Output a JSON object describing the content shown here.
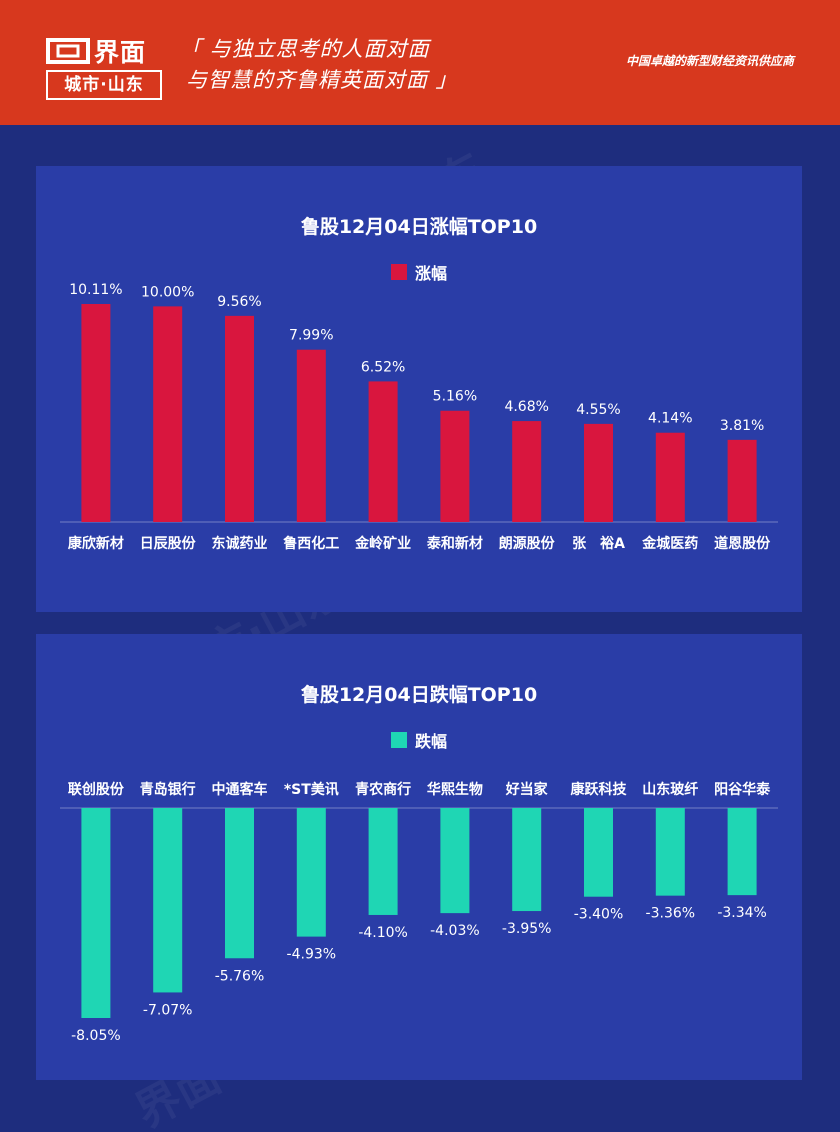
{
  "header": {
    "logo_name": "界面",
    "logo_sub": "城市·山东",
    "slogan_line1": "「 与独立思考的人面对面",
    "slogan_line2": "与智慧的齐鲁精英面对面 」",
    "tagline": "中国卓越的新型财经资讯供应商",
    "bg_color": "#d7381e"
  },
  "watermark_text": "界面 城市·山东",
  "chart_data": [
    {
      "type": "bar",
      "title": "鲁股12月04日涨幅TOP10",
      "legend": "涨幅",
      "color": "#d9163e",
      "categories": [
        "康欣新材",
        "日辰股份",
        "东诚药业",
        "鲁西化工",
        "金岭矿业",
        "泰和新材",
        "朗源股份",
        "张　裕A",
        "金城医药",
        "道恩股份"
      ],
      "values": [
        10.11,
        10.0,
        9.56,
        7.99,
        6.52,
        5.16,
        4.68,
        4.55,
        4.14,
        3.81
      ],
      "value_labels": [
        "10.11%",
        "10.00%",
        "9.56%",
        "7.99%",
        "6.52%",
        "5.16%",
        "4.68%",
        "4.55%",
        "4.14%",
        "3.81%"
      ],
      "ylim": [
        0,
        10.11
      ],
      "grid": false
    },
    {
      "type": "bar",
      "title": "鲁股12月04日跌幅TOP10",
      "legend": "跌幅",
      "color": "#1fd6b4",
      "categories": [
        "联创股份",
        "青岛银行",
        "中通客车",
        "*ST美讯",
        "青农商行",
        "华熙生物",
        "好当家",
        "康跃科技",
        "山东玻纤",
        "阳谷华泰"
      ],
      "values": [
        -8.05,
        -7.07,
        -5.76,
        -4.93,
        -4.1,
        -4.03,
        -3.95,
        -3.4,
        -3.36,
        -3.34
      ],
      "value_labels": [
        "-8.05%",
        "-7.07%",
        "-5.76%",
        "-4.93%",
        "-4.10%",
        "-4.03%",
        "-3.95%",
        "-3.40%",
        "-3.36%",
        "-3.34%"
      ],
      "ylim": [
        -8.05,
        0
      ],
      "grid": false
    }
  ]
}
